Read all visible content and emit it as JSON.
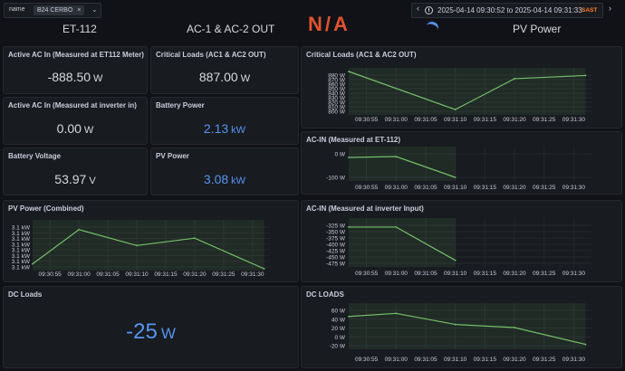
{
  "toolbar": {
    "var_label": "name",
    "var_value": "B24 CERBO",
    "time_range": "2025-04-14 09:30:52 to 2025-04-14 09:31:33",
    "timezone": "SAST"
  },
  "headers": {
    "h1": "ET-112",
    "h2": "AC-1 & AC-2 OUT",
    "h3": "N/A",
    "h4": "PV Power"
  },
  "stats": {
    "active_ac_in_et112": {
      "title": "Active AC In (Measured at ET112 Meter)",
      "value": "-888.50",
      "unit": "W"
    },
    "critical_loads": {
      "title": "Critical Loads (AC1 & AC2 OUT)",
      "value": "887.00",
      "unit": "W"
    },
    "active_ac_in_inverter": {
      "title": "Active AC In (Measured at inverter in)",
      "value": "0.00",
      "unit": "W"
    },
    "battery_power": {
      "title": "Battery Power",
      "value": "2.13",
      "unit": "kW"
    },
    "battery_voltage": {
      "title": "Battery Voltage",
      "value": "53.97",
      "unit": "V"
    },
    "pv_power": {
      "title": "PV Power",
      "value": "3.08",
      "unit": "kW"
    },
    "dc_loads": {
      "title": "DC Loads",
      "value": "-25",
      "unit": "W"
    }
  },
  "colors": {
    "green": "#73bf69",
    "blue": "#5794f2",
    "orange": "#ff7f2a",
    "bg": "#111217",
    "panel": "#181b1f"
  },
  "chart_data": [
    {
      "id": "critical_loads_chart",
      "type": "area",
      "title": "Critical Loads (AC1 & AC2 OUT)",
      "x_ticks": [
        "09:30:55",
        "09:31:00",
        "09:31:05",
        "09:31:10",
        "09:31:15",
        "09:31:20",
        "09:31:25",
        "09:31:30"
      ],
      "y_ticks": [
        "880 W",
        "870 W",
        "860 W",
        "850 W",
        "840 W",
        "830 W",
        "820 W",
        "810 W",
        "800 W"
      ],
      "ylim": [
        795,
        888
      ],
      "series": [
        {
          "x": [
            "09:30:52",
            "09:31:10",
            "09:31:20",
            "09:31:32"
          ],
          "values": [
            888,
            803,
            872,
            879
          ]
        }
      ]
    },
    {
      "id": "ac_in_et112_chart",
      "type": "area",
      "title": "AC-IN (Measured at ET-112)",
      "x_ticks": [
        "09:30:55",
        "09:31:00",
        "09:31:05",
        "09:31:10",
        "09:31:15",
        "09:31:20",
        "09:31:25",
        "09:31:30"
      ],
      "y_ticks": [
        "0 W",
        "-100 W"
      ],
      "ylim": [
        -130,
        30
      ],
      "series": [
        {
          "x": [
            "09:30:52",
            "09:31:00",
            "09:31:10"
          ],
          "values": [
            -10,
            -5,
            -120
          ]
        }
      ]
    },
    {
      "id": "pv_power_chart",
      "type": "area",
      "title": "PV Power (Combined)",
      "x_ticks": [
        "09:30:55",
        "09:31:00",
        "09:31:05",
        "09:31:10",
        "09:31:15",
        "09:31:20",
        "09:31:25",
        "09:31:30"
      ],
      "y_ticks": [
        "3.1 kW",
        "3.1 kW",
        "3.1 kW",
        "3.1 kW",
        "3.1 kW",
        "3.1 kW",
        "3.1 kW",
        "3.1 kW"
      ],
      "ylim": [
        3.078,
        3.115
      ],
      "series": [
        {
          "x": [
            "09:30:52",
            "09:31:00",
            "09:31:10",
            "09:31:20",
            "09:31:32"
          ],
          "values": [
            3.082,
            3.11,
            3.097,
            3.103,
            3.078
          ]
        }
      ]
    },
    {
      "id": "ac_in_inverter_chart",
      "type": "area",
      "title": "AC-IN (Measured at inverter Input)",
      "x_ticks": [
        "09:30:55",
        "09:31:00",
        "09:31:05",
        "09:31:10",
        "09:31:15",
        "09:31:20",
        "09:31:25",
        "09:31:30"
      ],
      "y_ticks": [
        "-325 W",
        "-350 W",
        "-375 W",
        "-400 W",
        "-425 W",
        "-450 W",
        "-475 W"
      ],
      "ylim": [
        -480,
        -318
      ],
      "series": [
        {
          "x": [
            "09:30:52",
            "09:31:00",
            "09:31:10"
          ],
          "values": [
            -338,
            -338,
            -462
          ]
        }
      ]
    },
    {
      "id": "dc_loads_chart",
      "type": "area",
      "title": "DC LOADS",
      "x_ticks": [
        "09:30:55",
        "09:31:00",
        "09:31:05",
        "09:31:10",
        "09:31:15",
        "09:31:20",
        "09:31:25",
        "09:31:30"
      ],
      "y_ticks": [
        "60 W",
        "40 W",
        "20 W",
        "0 W",
        "-20 W"
      ],
      "ylim": [
        -25,
        67
      ],
      "series": [
        {
          "x": [
            "09:30:52",
            "09:31:00",
            "09:31:10",
            "09:31:20",
            "09:31:32"
          ],
          "values": [
            45,
            52,
            27,
            20,
            -18
          ]
        }
      ]
    }
  ]
}
